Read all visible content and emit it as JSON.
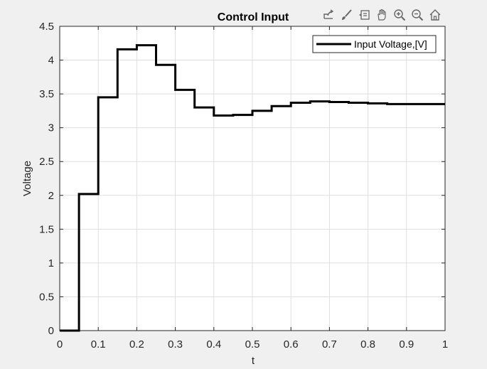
{
  "toolbar": {
    "items": [
      {
        "icon": "export-icon"
      },
      {
        "icon": "brush-icon"
      },
      {
        "icon": "data-tips-icon"
      },
      {
        "icon": "pan-icon"
      },
      {
        "icon": "zoom-in-icon"
      },
      {
        "icon": "zoom-out-icon"
      },
      {
        "icon": "home-icon"
      }
    ]
  },
  "chart_data": {
    "type": "line",
    "title": "Control Input",
    "xlabel": "t",
    "ylabel": "Voltage",
    "xlim": [
      0,
      1
    ],
    "ylim": [
      0,
      4.5
    ],
    "xticks": [
      0,
      0.1,
      0.2,
      0.3,
      0.4,
      0.5,
      0.6,
      0.7,
      0.8,
      0.9,
      1
    ],
    "xtick_labels": [
      "0",
      "0.1",
      "0.2",
      "0.3",
      "0.4",
      "0.5",
      "0.6",
      "0.7",
      "0.8",
      "0.9",
      "1"
    ],
    "yticks": [
      0,
      0.5,
      1,
      1.5,
      2,
      2.5,
      3,
      3.5,
      4,
      4.5
    ],
    "ytick_labels": [
      "0",
      "0.5",
      "1",
      "1.5",
      "2",
      "2.5",
      "3",
      "3.5",
      "4",
      "4.5"
    ],
    "grid": true,
    "legend_position": "top-right",
    "colors": {
      "line": "#000000",
      "grid": "#dfdfdf",
      "axes": "#262626",
      "plot_bg": "#ffffff"
    },
    "series": [
      {
        "name": "Input Voltage,[V]",
        "step": "post",
        "x": [
          0,
          0.05,
          0.1,
          0.15,
          0.2,
          0.25,
          0.3,
          0.35,
          0.4,
          0.45,
          0.5,
          0.55,
          0.6,
          0.65,
          0.7,
          0.75,
          0.8,
          0.85,
          0.9,
          0.95,
          1.0
        ],
        "y": [
          0,
          2.02,
          3.45,
          4.16,
          4.22,
          3.93,
          3.56,
          3.3,
          3.18,
          3.19,
          3.25,
          3.32,
          3.37,
          3.39,
          3.38,
          3.37,
          3.36,
          3.35,
          3.35,
          3.35,
          3.35
        ]
      }
    ]
  }
}
